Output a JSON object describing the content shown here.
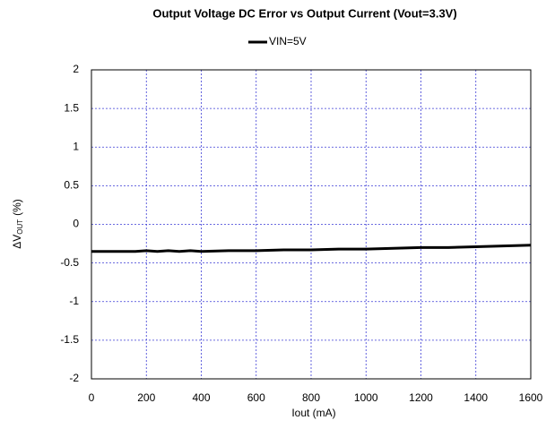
{
  "chart_data": {
    "type": "line",
    "title": "Output Voltage DC Error vs Output Current (Vout=3.3V)",
    "xlabel": "Iout (mA)",
    "ylabel": "ΔV",
    "ylabel_sub": "OUT",
    "ylabel_unit": "(%)",
    "x": [
      0,
      100,
      160,
      200,
      240,
      280,
      320,
      360,
      400,
      500,
      600,
      700,
      800,
      900,
      1000,
      1100,
      1200,
      1300,
      1400,
      1500,
      1600
    ],
    "series": [
      {
        "name": "VIN=5V",
        "color": "#000000",
        "values": [
          -0.35,
          -0.35,
          -0.35,
          -0.34,
          -0.35,
          -0.34,
          -0.35,
          -0.34,
          -0.35,
          -0.34,
          -0.34,
          -0.33,
          -0.33,
          -0.32,
          -0.32,
          -0.31,
          -0.3,
          -0.3,
          -0.29,
          -0.28,
          -0.27
        ]
      }
    ],
    "xlim": [
      0,
      1600
    ],
    "xticks": [
      0,
      200,
      400,
      600,
      800,
      1000,
      1200,
      1400,
      1600
    ],
    "ylim": [
      -2,
      2
    ],
    "yticks": [
      2,
      1.5,
      1,
      0.5,
      0,
      -0.5,
      -1,
      -1.5,
      -2
    ],
    "grid": true,
    "legend": "top"
  }
}
